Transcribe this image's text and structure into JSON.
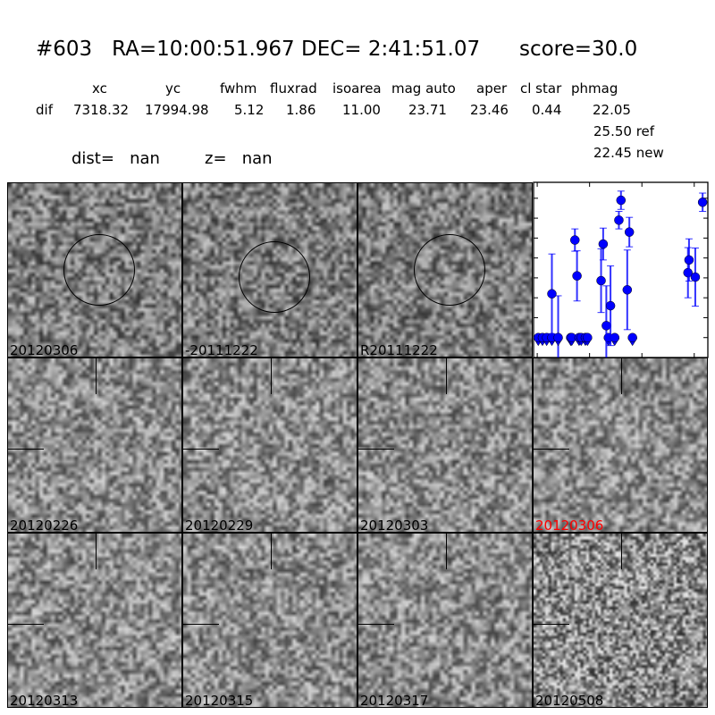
{
  "title": "#603   RA=10:00:51.967 DEC= 2:41:51.07      score=30.0",
  "table": {
    "headers": [
      "xc",
      "yc",
      "fwhm",
      "fluxrad",
      "isoarea",
      "mag auto",
      "aper",
      "cl star",
      "phmag"
    ],
    "row_label": "dif",
    "values": [
      "7318.32",
      "17994.98",
      "5.12",
      "1.86",
      "11.00",
      "23.71",
      "23.46",
      "0.44",
      "22.05"
    ],
    "ref": "25.50 ref",
    "new": "22.45 new"
  },
  "dist": "dist=   nan",
  "z": "z=   nan",
  "panels": [
    {
      "label": "20120306",
      "marker": "circle"
    },
    {
      "label": "-20111222",
      "marker": "circle"
    },
    {
      "label": "R20111222",
      "marker": "circle"
    },
    {
      "label": "20120226",
      "marker": "ticks"
    },
    {
      "label": "20120229",
      "marker": "ticks"
    },
    {
      "label": "20120303",
      "marker": "ticks"
    },
    {
      "label": "20120306",
      "marker": "ticks",
      "color": "#ff0000"
    },
    {
      "label": "20120313",
      "marker": "ticks"
    },
    {
      "label": "20120315",
      "marker": "ticks"
    },
    {
      "label": "20120317",
      "marker": "ticks"
    },
    {
      "label": "20120508",
      "marker": "ticks"
    }
  ],
  "chart_data": {
    "type": "scatter",
    "color": "#0000ff",
    "xlim": [
      -3.5,
      163
    ],
    "ylim": [
      26.0,
      21.6
    ],
    "y_inverted": true,
    "xticks": [
      "0",
      "50",
      "100",
      "150"
    ],
    "yticks": [
      "22.0",
      "22.5",
      "23.0",
      "23.5",
      "24.0",
      "24.5",
      "25.0",
      "25.5",
      "26.0"
    ],
    "detections": [
      {
        "x": 14,
        "y": 24.4,
        "err": 1.0
      },
      {
        "x": 36,
        "y": 23.05,
        "err": 0.28
      },
      {
        "x": 38,
        "y": 23.95,
        "err": 0.63
      },
      {
        "x": 61,
        "y": 24.07,
        "err": 0.8
      },
      {
        "x": 63,
        "y": 23.15,
        "err": 0.4
      },
      {
        "x": 66,
        "y": 25.2,
        "err": 1.0
      },
      {
        "x": 70,
        "y": 24.7,
        "err": 1.0
      },
      {
        "x": 78,
        "y": 22.55,
        "err": 0.22
      },
      {
        "x": 80,
        "y": 22.05,
        "err": 0.23
      },
      {
        "x": 86,
        "y": 24.3,
        "err": 1.0
      },
      {
        "x": 88,
        "y": 22.85,
        "err": 0.37
      },
      {
        "x": 144,
        "y": 23.87,
        "err": 0.63
      },
      {
        "x": 145,
        "y": 23.55,
        "err": 0.53
      },
      {
        "x": 151,
        "y": 23.98,
        "err": 0.73
      },
      {
        "x": 158,
        "y": 22.1,
        "err": 0.23
      }
    ],
    "upper_limits": {
      "y": 25.5,
      "x": [
        1,
        5,
        9,
        14,
        20,
        32,
        33,
        40,
        42,
        46,
        48,
        68,
        74,
        91
      ]
    },
    "extra_errorbar": {
      "x": 20,
      "y": 25.5,
      "err": 1.05
    }
  }
}
